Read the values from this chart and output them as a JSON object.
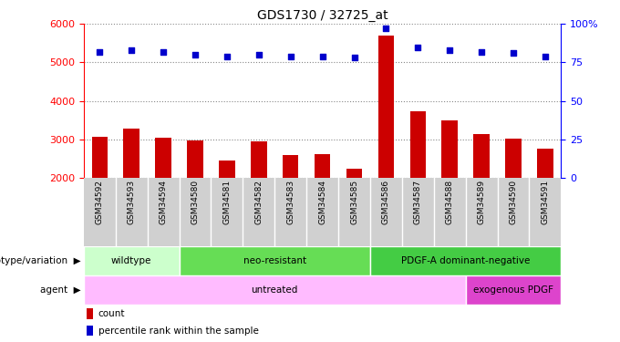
{
  "title": "GDS1730 / 32725_at",
  "samples": [
    "GSM34592",
    "GSM34593",
    "GSM34594",
    "GSM34580",
    "GSM34581",
    "GSM34582",
    "GSM34583",
    "GSM34584",
    "GSM34585",
    "GSM34586",
    "GSM34587",
    "GSM34588",
    "GSM34589",
    "GSM34590",
    "GSM34591"
  ],
  "counts": [
    3060,
    3280,
    3050,
    2980,
    2450,
    2950,
    2600,
    2620,
    2230,
    5700,
    3720,
    3490,
    3130,
    3020,
    2770
  ],
  "percentile": [
    82,
    83,
    82,
    80,
    79,
    80,
    79,
    79,
    78,
    97,
    85,
    83,
    82,
    81,
    79
  ],
  "ylim_left": [
    2000,
    6000
  ],
  "ylim_right": [
    0,
    100
  ],
  "yticks_left": [
    2000,
    3000,
    4000,
    5000,
    6000
  ],
  "yticks_right": [
    0,
    25,
    50,
    75,
    100
  ],
  "bar_color": "#cc0000",
  "dot_color": "#0000cc",
  "groups": {
    "genotype": [
      {
        "label": "wildtype",
        "start": 0,
        "end": 3,
        "color": "#ccffcc"
      },
      {
        "label": "neo-resistant",
        "start": 3,
        "end": 9,
        "color": "#66dd55"
      },
      {
        "label": "PDGF-A dominant-negative",
        "start": 9,
        "end": 15,
        "color": "#44cc44"
      }
    ],
    "agent": [
      {
        "label": "untreated",
        "start": 0,
        "end": 12,
        "color": "#ffbbff"
      },
      {
        "label": "exogenous PDGF",
        "start": 12,
        "end": 15,
        "color": "#dd44cc"
      }
    ]
  },
  "legend_count_color": "#cc0000",
  "legend_percentile_color": "#0000cc",
  "grid_color": "#888888",
  "sample_bg_color": "#d0d0d0",
  "plot_bg_color": "#ffffff"
}
